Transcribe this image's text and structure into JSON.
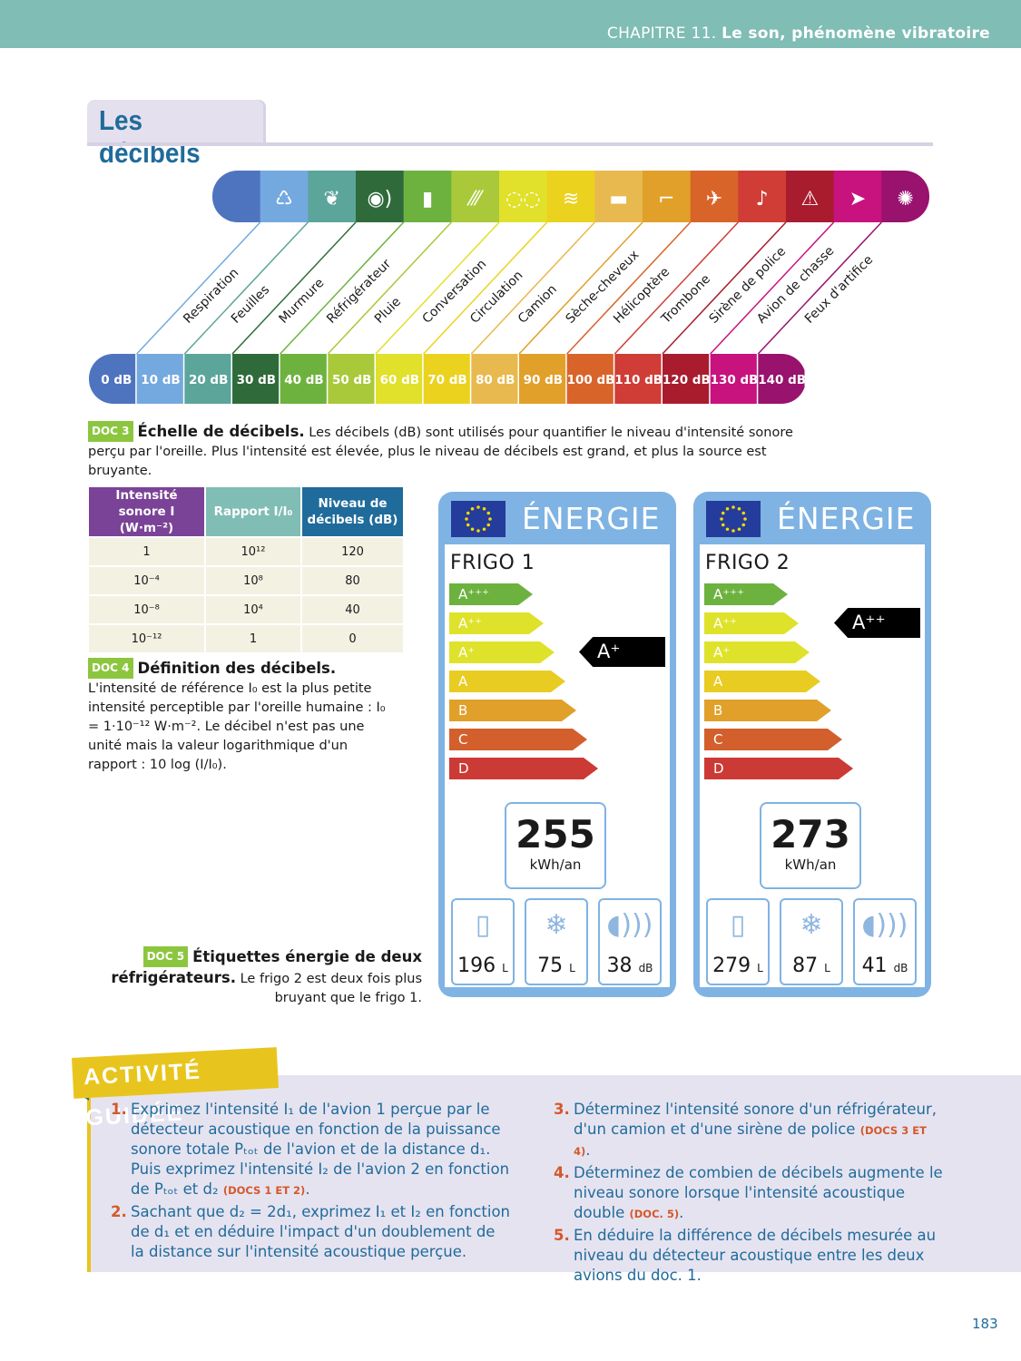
{
  "header": {
    "chapter": "CHAPITRE 11.",
    "chapter_title": "Le son, phénomène vibratoire"
  },
  "section_title": "Les décibels",
  "scale": {
    "colors": [
      "#4f74bf",
      "#74a9df",
      "#5ca59b",
      "#2f6b3a",
      "#6db23f",
      "#a9c93a",
      "#e1e02a",
      "#ebd21f",
      "#e8b94e",
      "#e0a02a",
      "#d8642a",
      "#cf3d36",
      "#a81c2e",
      "#c8127e",
      "#98126e"
    ],
    "icons": [
      "",
      "lungs-icon",
      "leaves-icon",
      "whisper-ear-icon",
      "fridge-icon",
      "rain-icon",
      "speech-bubbles-icon",
      "road-traffic-icon",
      "truck-icon",
      "hair-dryer-icon",
      "helicopter-icon",
      "trombone-icon",
      "siren-icon",
      "fighter-jet-icon",
      "fireworks-icon"
    ],
    "glyphs": [
      "",
      "♺",
      "❦",
      "◉)",
      "▮",
      "⁄⁄⁄",
      "◌◌",
      "≋",
      "▬",
      "⌐",
      "✈",
      "♪",
      "⚠",
      "➤",
      "✺"
    ],
    "sources": [
      "Respiration",
      "Feuilles",
      "Murmure",
      "Réfrigérateur",
      "Pluie",
      "Conversation",
      "Circulation",
      "Camion",
      "Sèche-cheveux",
      "Hélicoptère",
      "Trombone",
      "Sirène de police",
      "Avion de chasse",
      "Feux d'artifice"
    ],
    "levels": [
      "0 dB",
      "10 dB",
      "20 dB",
      "30 dB",
      "40 dB",
      "50 dB",
      "60 dB",
      "70 dB",
      "80 dB",
      "90 dB",
      "100 dB",
      "110 dB",
      "120 dB",
      "130 dB",
      "140 dB"
    ]
  },
  "doc3": {
    "badge": "DOC 3",
    "title": "Échelle de décibels.",
    "text": " Les décibels (dB) sont utilisés pour quantifier le niveau d'intensité sonore perçu par l'oreille. Plus l'intensité est élevée, plus le niveau de décibels est grand, et plus la source est bruyante."
  },
  "table": {
    "headers": [
      "Intensité sonore I (W·m⁻²)",
      "Rapport I/I₀",
      "Niveau de décibels (dB)"
    ],
    "header_colors": [
      "#7a4397",
      "#7fbdb5",
      "#1f6b9b"
    ],
    "rows": [
      [
        "1",
        "10¹²",
        "120"
      ],
      [
        "10⁻⁴",
        "10⁸",
        "80"
      ],
      [
        "10⁻⁸",
        "10⁴",
        "40"
      ],
      [
        "10⁻¹²",
        "1",
        "0"
      ]
    ]
  },
  "doc4": {
    "badge": "DOC 4",
    "title": "Définition des décibels.",
    "text": "L'intensité de référence I₀ est la plus petite intensité perceptible par l'oreille humaine : I₀ = 1·10⁻¹² W·m⁻². Le décibel n'est pas une unité mais la valeur logarithmique d'un rapport : 10 log (I/I₀)."
  },
  "labels": [
    {
      "header": "ÉNERGIE",
      "name": "FRIGO 1",
      "classes": [
        "A⁺⁺⁺",
        "A⁺⁺",
        "A⁺",
        "A",
        "B",
        "C",
        "D"
      ],
      "rating": "A⁺",
      "rating_index": 2,
      "consumption": "255",
      "consumption_unit": "kWh/an",
      "fresh": "196",
      "fresh_unit": "L",
      "frozen": "75",
      "frozen_unit": "L",
      "noise": "38",
      "noise_unit": "dB"
    },
    {
      "header": "ÉNERGIE",
      "name": "FRIGO 2",
      "classes": [
        "A⁺⁺⁺",
        "A⁺⁺",
        "A⁺",
        "A",
        "B",
        "C",
        "D"
      ],
      "rating": "A⁺⁺",
      "rating_index": 1,
      "consumption": "273",
      "consumption_unit": "kWh/an",
      "fresh": "279",
      "fresh_unit": "L",
      "frozen": "87",
      "frozen_unit": "L",
      "noise": "41",
      "noise_unit": "dB"
    }
  ],
  "class_colors": [
    "#6db23f",
    "#dfe22a",
    "#dfe22a",
    "#e8cc22",
    "#e0a02a",
    "#d35f2c",
    "#cc3a36"
  ],
  "doc5": {
    "badge": "DOC 5",
    "title": "Étiquettes énergie de deux réfrigérateurs.",
    "text": " Le frigo 2 est deux fois plus bruyant que le frigo 1."
  },
  "activity": {
    "tag": "ACTIVITÉ GUIDÉE",
    "items": [
      {
        "num": "1.",
        "text": "Exprimez l'intensité I₁ de l'avion 1 perçue par le détecteur acoustique en fonction de la puissance sonore totale Pₜₒₜ de l'avion et de la distance d₁. Puis exprimez l'intensité I₂ de l'avion 2 en fonction de Pₜₒₜ et d₂",
        "ref": "(DOCS 1 ET 2)",
        "end": "."
      },
      {
        "num": "2.",
        "text": "Sachant que d₂ = 2d₁, exprimez I₁ et I₂ en fonction de d₁ et en déduire l'impact d'un doublement de la distance sur l'intensité acoustique perçue.",
        "ref": "",
        "end": ""
      },
      {
        "num": "3.",
        "text": "Déterminez l'intensité sonore d'un réfrigérateur, d'un camion et d'une sirène de police",
        "ref": "(DOCS 3 ET 4)",
        "end": "."
      },
      {
        "num": "4.",
        "text": "Déterminez de combien de décibels augmente le niveau sonore lorsque l'intensité acoustique double",
        "ref": "(DOC. 5)",
        "end": "."
      },
      {
        "num": "5.",
        "text": "En déduire la différence de décibels mesurée au niveau du détecteur acoustique entre les deux avions du doc. 1.",
        "ref": "",
        "end": ""
      }
    ]
  },
  "page_number": "183"
}
